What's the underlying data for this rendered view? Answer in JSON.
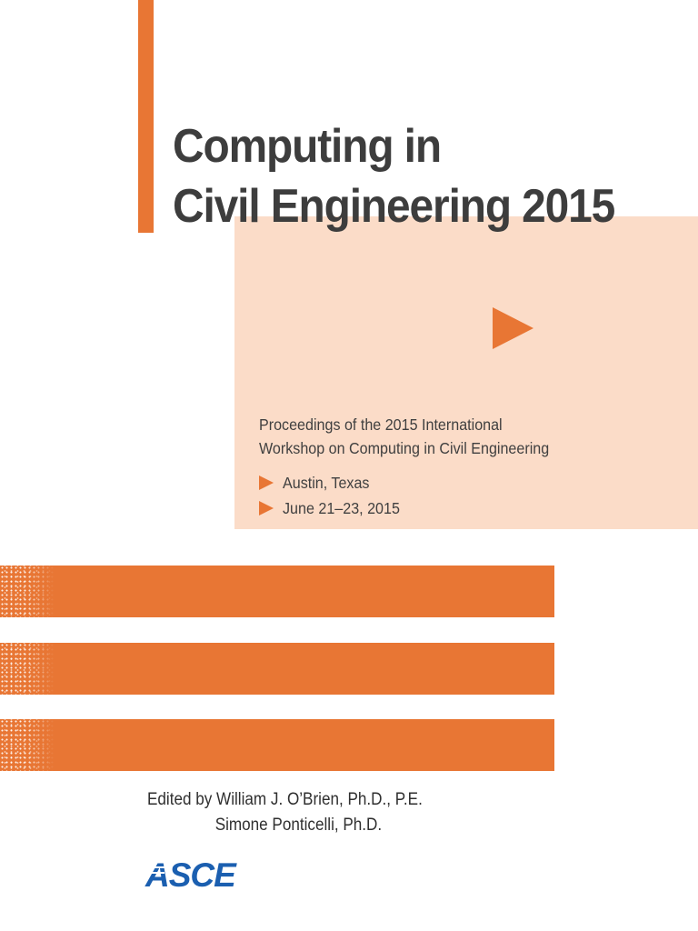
{
  "cover": {
    "title_line1": "Computing in",
    "title_line2": "Civil Engineering 2015",
    "proceedings_line1": "Proceedings of the 2015 International",
    "proceedings_line2": "Workshop on Computing in Civil Engineering",
    "location": "Austin, Texas",
    "dates": "June 21–23, 2015",
    "editor_line1": "Edited by William J. O’Brien, Ph.D., P.E.",
    "editor_line2": "Simone Ponticelli, Ph.D.",
    "publisher_logo_text": "ASCE"
  },
  "colors": {
    "accent_orange": "#e87634",
    "panel_peach": "#fbdcc8",
    "title_gray": "#3d3d3d",
    "logo_blue": "#1b5fb0"
  },
  "icons": {
    "arrow": "right-triangle-icon"
  }
}
